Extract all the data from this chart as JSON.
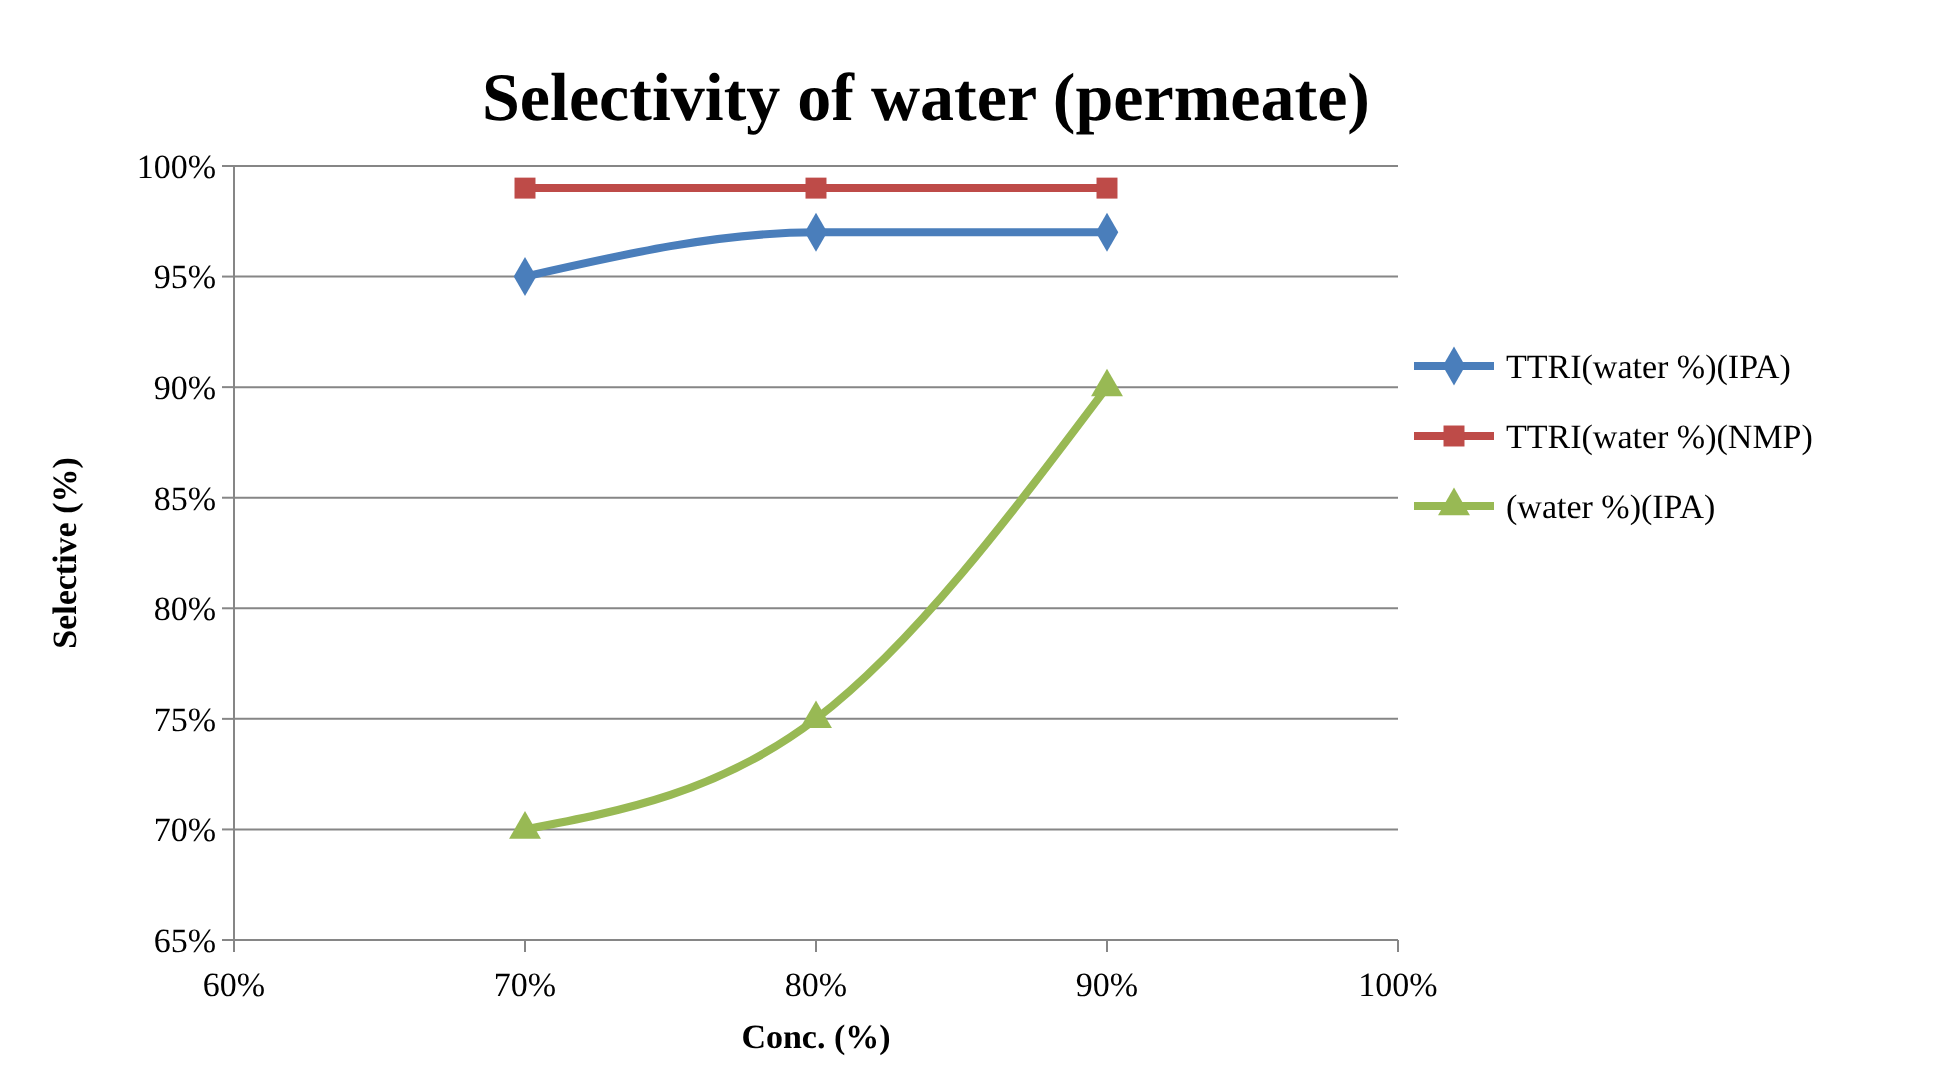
{
  "chart_data": {
    "type": "line",
    "title": "Selectivity of water (permeate)",
    "xlabel": "Conc. (%)",
    "ylabel": "Selective (%)",
    "x": [
      70,
      80,
      90
    ],
    "series": [
      {
        "name": "TTRI(water %)(IPA)",
        "color": "#4a7ebb",
        "values": [
          95,
          97,
          97
        ],
        "marker": "diamond"
      },
      {
        "name": "TTRI(water %)(NMP)",
        "color": "#be4b48",
        "values": [
          99,
          99,
          99
        ],
        "marker": "square"
      },
      {
        "name": "(water %)(IPA)",
        "color": "#98b954",
        "values": [
          70,
          75,
          90
        ],
        "marker": "triangle"
      }
    ],
    "xlim": [
      60,
      100
    ],
    "xticks": [
      {
        "value": 60,
        "label": "60%"
      },
      {
        "value": 70,
        "label": "70%"
      },
      {
        "value": 80,
        "label": "80%"
      },
      {
        "value": 90,
        "label": "90%"
      },
      {
        "value": 100,
        "label": "100%"
      }
    ],
    "ylim": [
      65,
      100
    ],
    "yticks": [
      {
        "value": 65,
        "label": "65%"
      },
      {
        "value": 70,
        "label": "70%"
      },
      {
        "value": 75,
        "label": "75%"
      },
      {
        "value": 80,
        "label": "80%"
      },
      {
        "value": 85,
        "label": "85%"
      },
      {
        "value": 90,
        "label": "90%"
      },
      {
        "value": 95,
        "label": "95%"
      },
      {
        "value": 100,
        "label": "100%"
      }
    ],
    "grid": "y",
    "legend": "right",
    "line_style": "solid"
  }
}
